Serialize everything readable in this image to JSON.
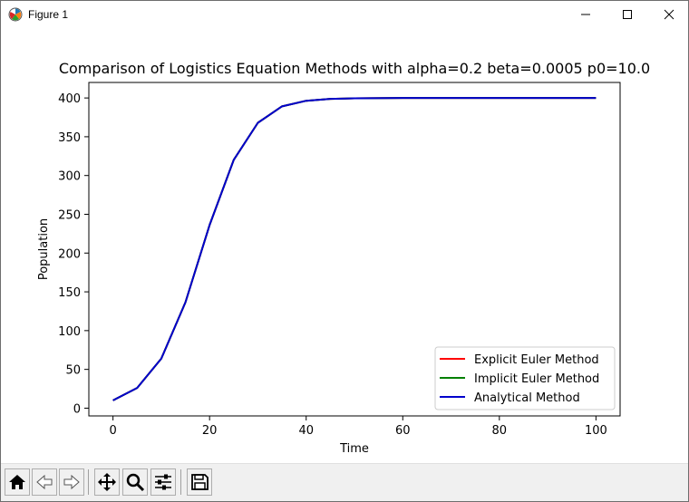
{
  "window": {
    "title": "Figure 1",
    "icon": "matplotlib-icon",
    "controls": [
      "minimize-icon",
      "maximize-icon",
      "close-icon"
    ]
  },
  "toolbar": {
    "buttons": [
      "home-icon",
      "back-arrow-icon",
      "forward-arrow-icon",
      "pan-icon",
      "zoom-icon",
      "subplots-config-icon",
      "save-icon"
    ]
  },
  "chart_data": {
    "type": "line",
    "title": "Comparison of Logistics Equation Methods with alpha=0.2 beta=0.0005 p0=10.0",
    "xlabel": "Time",
    "ylabel": "Population",
    "xlim": [
      -5,
      105
    ],
    "ylim": [
      -10,
      420
    ],
    "xticks": [
      0,
      20,
      40,
      60,
      80,
      100
    ],
    "yticks": [
      0,
      50,
      100,
      150,
      200,
      250,
      300,
      350,
      400
    ],
    "grid": false,
    "legend": "lower right",
    "x": [
      0,
      5,
      10,
      15,
      20,
      25,
      30,
      35,
      40,
      45,
      50,
      60,
      70,
      80,
      90,
      100
    ],
    "series": [
      {
        "name": "Explicit Euler Method",
        "color": "#ff0000",
        "values": [
          10,
          26.1,
          63.9,
          136.5,
          236.1,
          320.2,
          368.0,
          389.2,
          396.4,
          398.8,
          399.6,
          400.0,
          400.0,
          400.0,
          400.0,
          400.0
        ]
      },
      {
        "name": "Implicit Euler Method",
        "color": "#008000",
        "values": [
          10,
          26.1,
          63.9,
          136.5,
          236.1,
          320.2,
          368.0,
          389.2,
          396.4,
          398.8,
          399.6,
          400.0,
          400.0,
          400.0,
          400.0,
          400.0
        ]
      },
      {
        "name": "Analytical Method",
        "color": "#0000cc",
        "values": [
          10,
          26.1,
          63.9,
          136.5,
          236.1,
          320.2,
          368.0,
          389.2,
          396.4,
          398.8,
          399.6,
          400.0,
          400.0,
          400.0,
          400.0,
          400.0
        ]
      }
    ]
  }
}
